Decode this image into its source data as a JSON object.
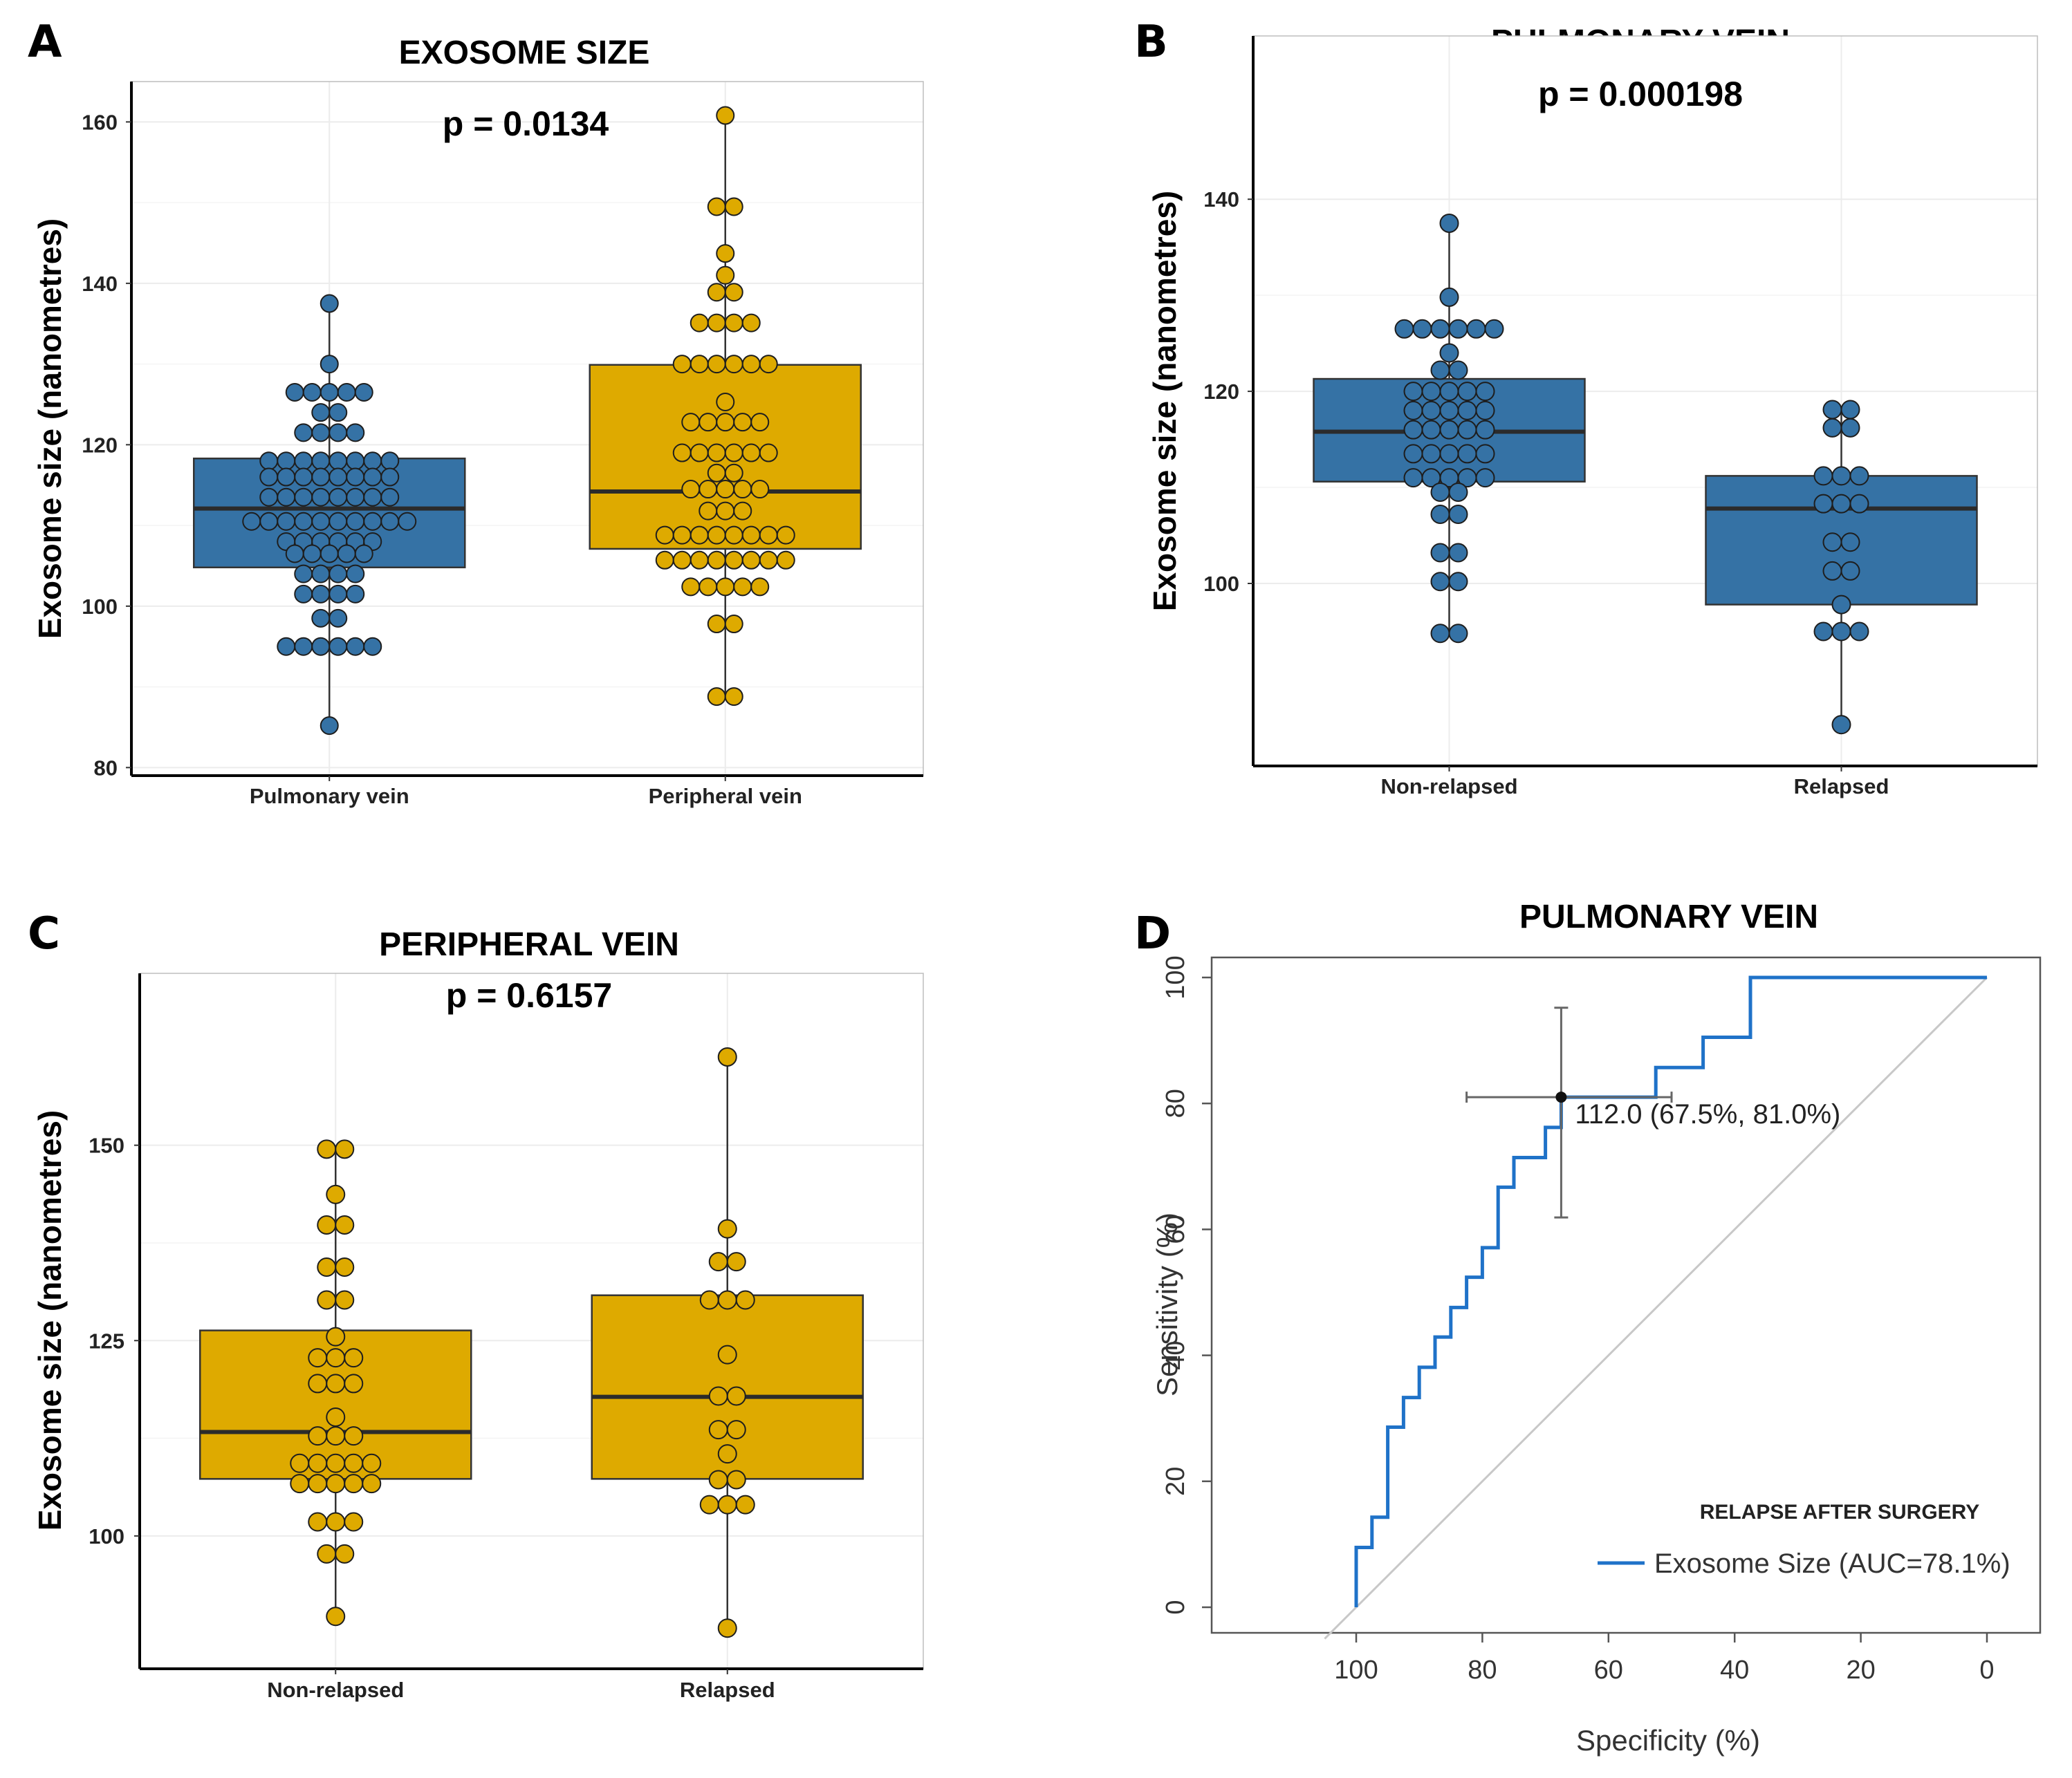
{
  "colors": {
    "blue": "#3572a5",
    "gold": "#deaa00",
    "roc": "#1f72c8",
    "diag": "#c8c8c8",
    "grid": "#ececec"
  },
  "chart_data": [
    {
      "panel": "A",
      "type": "box-dotplot",
      "title": "EXOSOME SIZE",
      "p_value_label": "p = 0.0134",
      "ylabel": "Exosome size (nanometres)",
      "xlabel": "",
      "ylim": [
        79,
        165
      ],
      "yticks": [
        80,
        100,
        120,
        140,
        160
      ],
      "categories": [
        "Pulmonary vein",
        "Peripheral vein"
      ],
      "groups": [
        {
          "name": "Pulmonary vein",
          "color": "blue",
          "box": {
            "q1": 104.8,
            "median": 112.1,
            "q3": 118.3,
            "whisker_low": 85.2,
            "whisker_high": 137.5
          },
          "points": [
            137.5,
            130,
            126.5,
            126.5,
            126.5,
            126.5,
            126.5,
            124,
            124,
            121.5,
            121.5,
            121.5,
            121.5,
            118,
            118,
            118,
            118,
            118,
            118,
            118,
            118,
            116,
            116,
            116,
            116,
            116,
            116,
            116,
            116,
            113.5,
            113.5,
            113.5,
            113.5,
            113.5,
            113.5,
            113.5,
            113.5,
            110.5,
            110.5,
            110.5,
            110.5,
            110.5,
            110.5,
            110.5,
            110.5,
            110.5,
            110.5,
            108,
            108,
            108,
            108,
            108,
            108,
            106.5,
            106.5,
            106.5,
            106.5,
            106.5,
            104,
            104,
            104,
            104,
            101.5,
            101.5,
            101.5,
            101.5,
            98.5,
            98.5,
            95,
            95,
            95,
            95,
            95,
            95,
            85.2
          ]
        },
        {
          "name": "Peripheral vein",
          "color": "gold",
          "box": {
            "q1": 107.1,
            "median": 114.2,
            "q3": 129.9,
            "whisker_low": 88.8,
            "whisker_high": 160.8
          },
          "points": [
            160.8,
            149.5,
            149.5,
            143.7,
            141,
            138.9,
            138.9,
            135.1,
            135.1,
            135.1,
            135.1,
            130,
            130,
            130,
            130,
            130,
            130,
            125.3,
            122.8,
            122.8,
            122.8,
            122.8,
            122.8,
            119,
            119,
            119,
            119,
            119,
            119,
            116.5,
            116.5,
            114.5,
            114.5,
            114.5,
            114.5,
            114.5,
            111.8,
            111.8,
            111.8,
            108.8,
            108.8,
            108.8,
            108.8,
            108.8,
            108.8,
            108.8,
            108.8,
            105.7,
            105.7,
            105.7,
            105.7,
            105.7,
            105.7,
            105.7,
            105.7,
            102.4,
            102.4,
            102.4,
            102.4,
            102.4,
            97.8,
            97.8,
            88.8,
            88.8
          ]
        }
      ]
    },
    {
      "panel": "B",
      "type": "box-dotplot",
      "title": "PULMONARY VEIN",
      "p_value_label": "p = 0.000198",
      "ylabel": "Exosome size (nanometres)",
      "xlabel": "",
      "ylim": [
        81,
        157
      ],
      "yticks": [
        100,
        120,
        140
      ],
      "categories": [
        "Non-relapsed",
        "Relapsed"
      ],
      "groups": [
        {
          "name": "Non-relapsed",
          "color": "blue",
          "box": {
            "q1": 110.6,
            "median": 115.8,
            "q3": 121.3,
            "whisker_low": 94.8,
            "whisker_high": 137.5
          },
          "points": [
            137.5,
            129.8,
            126.5,
            126.5,
            126.5,
            126.5,
            126.5,
            126.5,
            124,
            122.2,
            122.2,
            120,
            120,
            120,
            120,
            120,
            118,
            118,
            118,
            118,
            118,
            116,
            116,
            116,
            116,
            116,
            113.5,
            113.5,
            113.5,
            113.5,
            113.5,
            111,
            111,
            111,
            111,
            111,
            109.5,
            109.5,
            107.2,
            107.2,
            103.2,
            103.2,
            100.2,
            100.2,
            94.8,
            94.8
          ]
        },
        {
          "name": "Relapsed",
          "color": "blue",
          "box": {
            "q1": 97.8,
            "median": 107.8,
            "q3": 111.2,
            "whisker_low": 85.3,
            "whisker_high": 118.1
          },
          "points": [
            118.1,
            118.1,
            116.2,
            116.2,
            111.2,
            111.2,
            111.2,
            108.3,
            108.3,
            108.3,
            104.3,
            104.3,
            101.3,
            101.3,
            97.8,
            95,
            95,
            95,
            85.3
          ]
        }
      ]
    },
    {
      "panel": "C",
      "type": "box-dotplot",
      "title": "PERIPHERAL VEIN",
      "p_value_label": "p = 0.6157",
      "ylabel": "Exosome size (nanometres)",
      "xlabel": "",
      "ylim": [
        83,
        172
      ],
      "yticks": [
        100,
        125,
        150
      ],
      "categories": [
        "Non-relapsed",
        "Relapsed"
      ],
      "groups": [
        {
          "name": "Non-relapsed",
          "color": "gold",
          "box": {
            "q1": 107.3,
            "median": 113.3,
            "q3": 126.3,
            "whisker_low": 89.7,
            "whisker_high": 149.5
          },
          "points": [
            149.5,
            149.5,
            143.7,
            139.8,
            139.8,
            134.4,
            134.4,
            130.2,
            130.2,
            125.5,
            122.8,
            122.8,
            122.8,
            119.5,
            119.5,
            119.5,
            115.2,
            112.8,
            112.8,
            112.8,
            109.3,
            109.3,
            109.3,
            109.3,
            109.3,
            106.7,
            106.7,
            106.7,
            106.7,
            106.7,
            101.8,
            101.8,
            101.8,
            97.7,
            97.7,
            89.7
          ]
        },
        {
          "name": "Relapsed",
          "color": "gold",
          "box": {
            "q1": 107.3,
            "median": 117.8,
            "q3": 130.8,
            "whisker_low": 88.2,
            "whisker_high": 161.3
          },
          "points": [
            161.3,
            139.3,
            135.1,
            135.1,
            130.2,
            130.2,
            130.2,
            123.2,
            117.9,
            117.9,
            113.6,
            113.6,
            110.5,
            107.2,
            107.2,
            104,
            104,
            104,
            88.2
          ]
        }
      ]
    },
    {
      "panel": "D",
      "type": "line",
      "title": "PULMONARY VEIN",
      "xlabel": "Specificity (%)",
      "ylabel": "Sensitivity (%)",
      "xlim": [
        100,
        0
      ],
      "ylim": [
        0,
        100
      ],
      "xticks": [
        100,
        80,
        60,
        40,
        20,
        0
      ],
      "yticks": [
        0,
        20,
        40,
        60,
        80,
        100
      ],
      "series": [
        {
          "name": "Exosome Size (AUC=78.1%)",
          "x": [
            100,
            100,
            97.5,
            97.5,
            95,
            95,
            92.5,
            92.5,
            90,
            90,
            87.5,
            87.5,
            85,
            85,
            82.5,
            82.5,
            80,
            80,
            77.5,
            77.5,
            75,
            75,
            70,
            70,
            67.5,
            67.5,
            52.5,
            52.5,
            45,
            45,
            37.5,
            37.5,
            0
          ],
          "y": [
            0,
            9.5,
            9.5,
            14.3,
            14.3,
            28.6,
            28.6,
            33.3,
            33.3,
            38.1,
            38.1,
            42.9,
            42.9,
            47.6,
            47.6,
            52.4,
            52.4,
            57.1,
            57.1,
            66.7,
            66.7,
            71.4,
            71.4,
            76.2,
            76.2,
            81,
            81,
            85.7,
            85.7,
            90.5,
            90.5,
            100,
            100
          ]
        }
      ],
      "reference_line": {
        "x": [
          105,
          0
        ],
        "y": [
          -5,
          100
        ]
      },
      "threshold": {
        "label": "112.0 (67.5%, 81.0%)",
        "specificity": 67.5,
        "sensitivity": 81.0,
        "spec_ci": [
          50,
          82.5
        ],
        "sens_ci": [
          61.9,
          95.2
        ]
      },
      "legend_title": "RELAPSE AFTER SURGERY",
      "legend_label": "Exosome Size (AUC=78.1%)",
      "legend_position": "bottom-right"
    }
  ]
}
